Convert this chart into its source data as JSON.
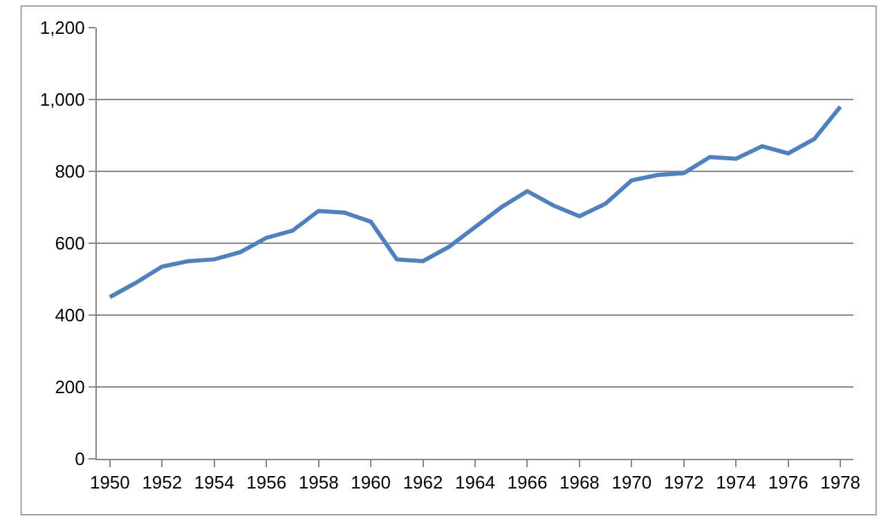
{
  "chart_data": {
    "type": "line",
    "categories": [
      "1950",
      null,
      "1952",
      null,
      "1954",
      null,
      "1956",
      null,
      "1958",
      null,
      "1960",
      null,
      "1962",
      null,
      "1964",
      null,
      "1966",
      null,
      "1968",
      null,
      "1970",
      null,
      "1972",
      null,
      "1974",
      null,
      "1976",
      null,
      "1978"
    ],
    "series": [
      {
        "color": "#4f81bd",
        "values": [
          450,
          490,
          535,
          550,
          555,
          575,
          615,
          635,
          690,
          685,
          660,
          555,
          550,
          590,
          645,
          700,
          745,
          705,
          675,
          710,
          775,
          790,
          795,
          840,
          835,
          870,
          850,
          890,
          980
        ]
      }
    ],
    "ylim": [
      0,
      1200
    ],
    "yticks": [
      0,
      {
        "value": 200,
        "label": "200"
      },
      {
        "value": 400,
        "label": "400"
      },
      {
        "value": 600,
        "label": "600"
      },
      {
        "value": 800,
        "label": "800"
      },
      {
        "value": 1000,
        "label": "1,000"
      },
      {
        "value": 1200,
        "label": "1,200"
      }
    ],
    "grid": "y",
    "marker": "none",
    "line_style": "solid"
  }
}
